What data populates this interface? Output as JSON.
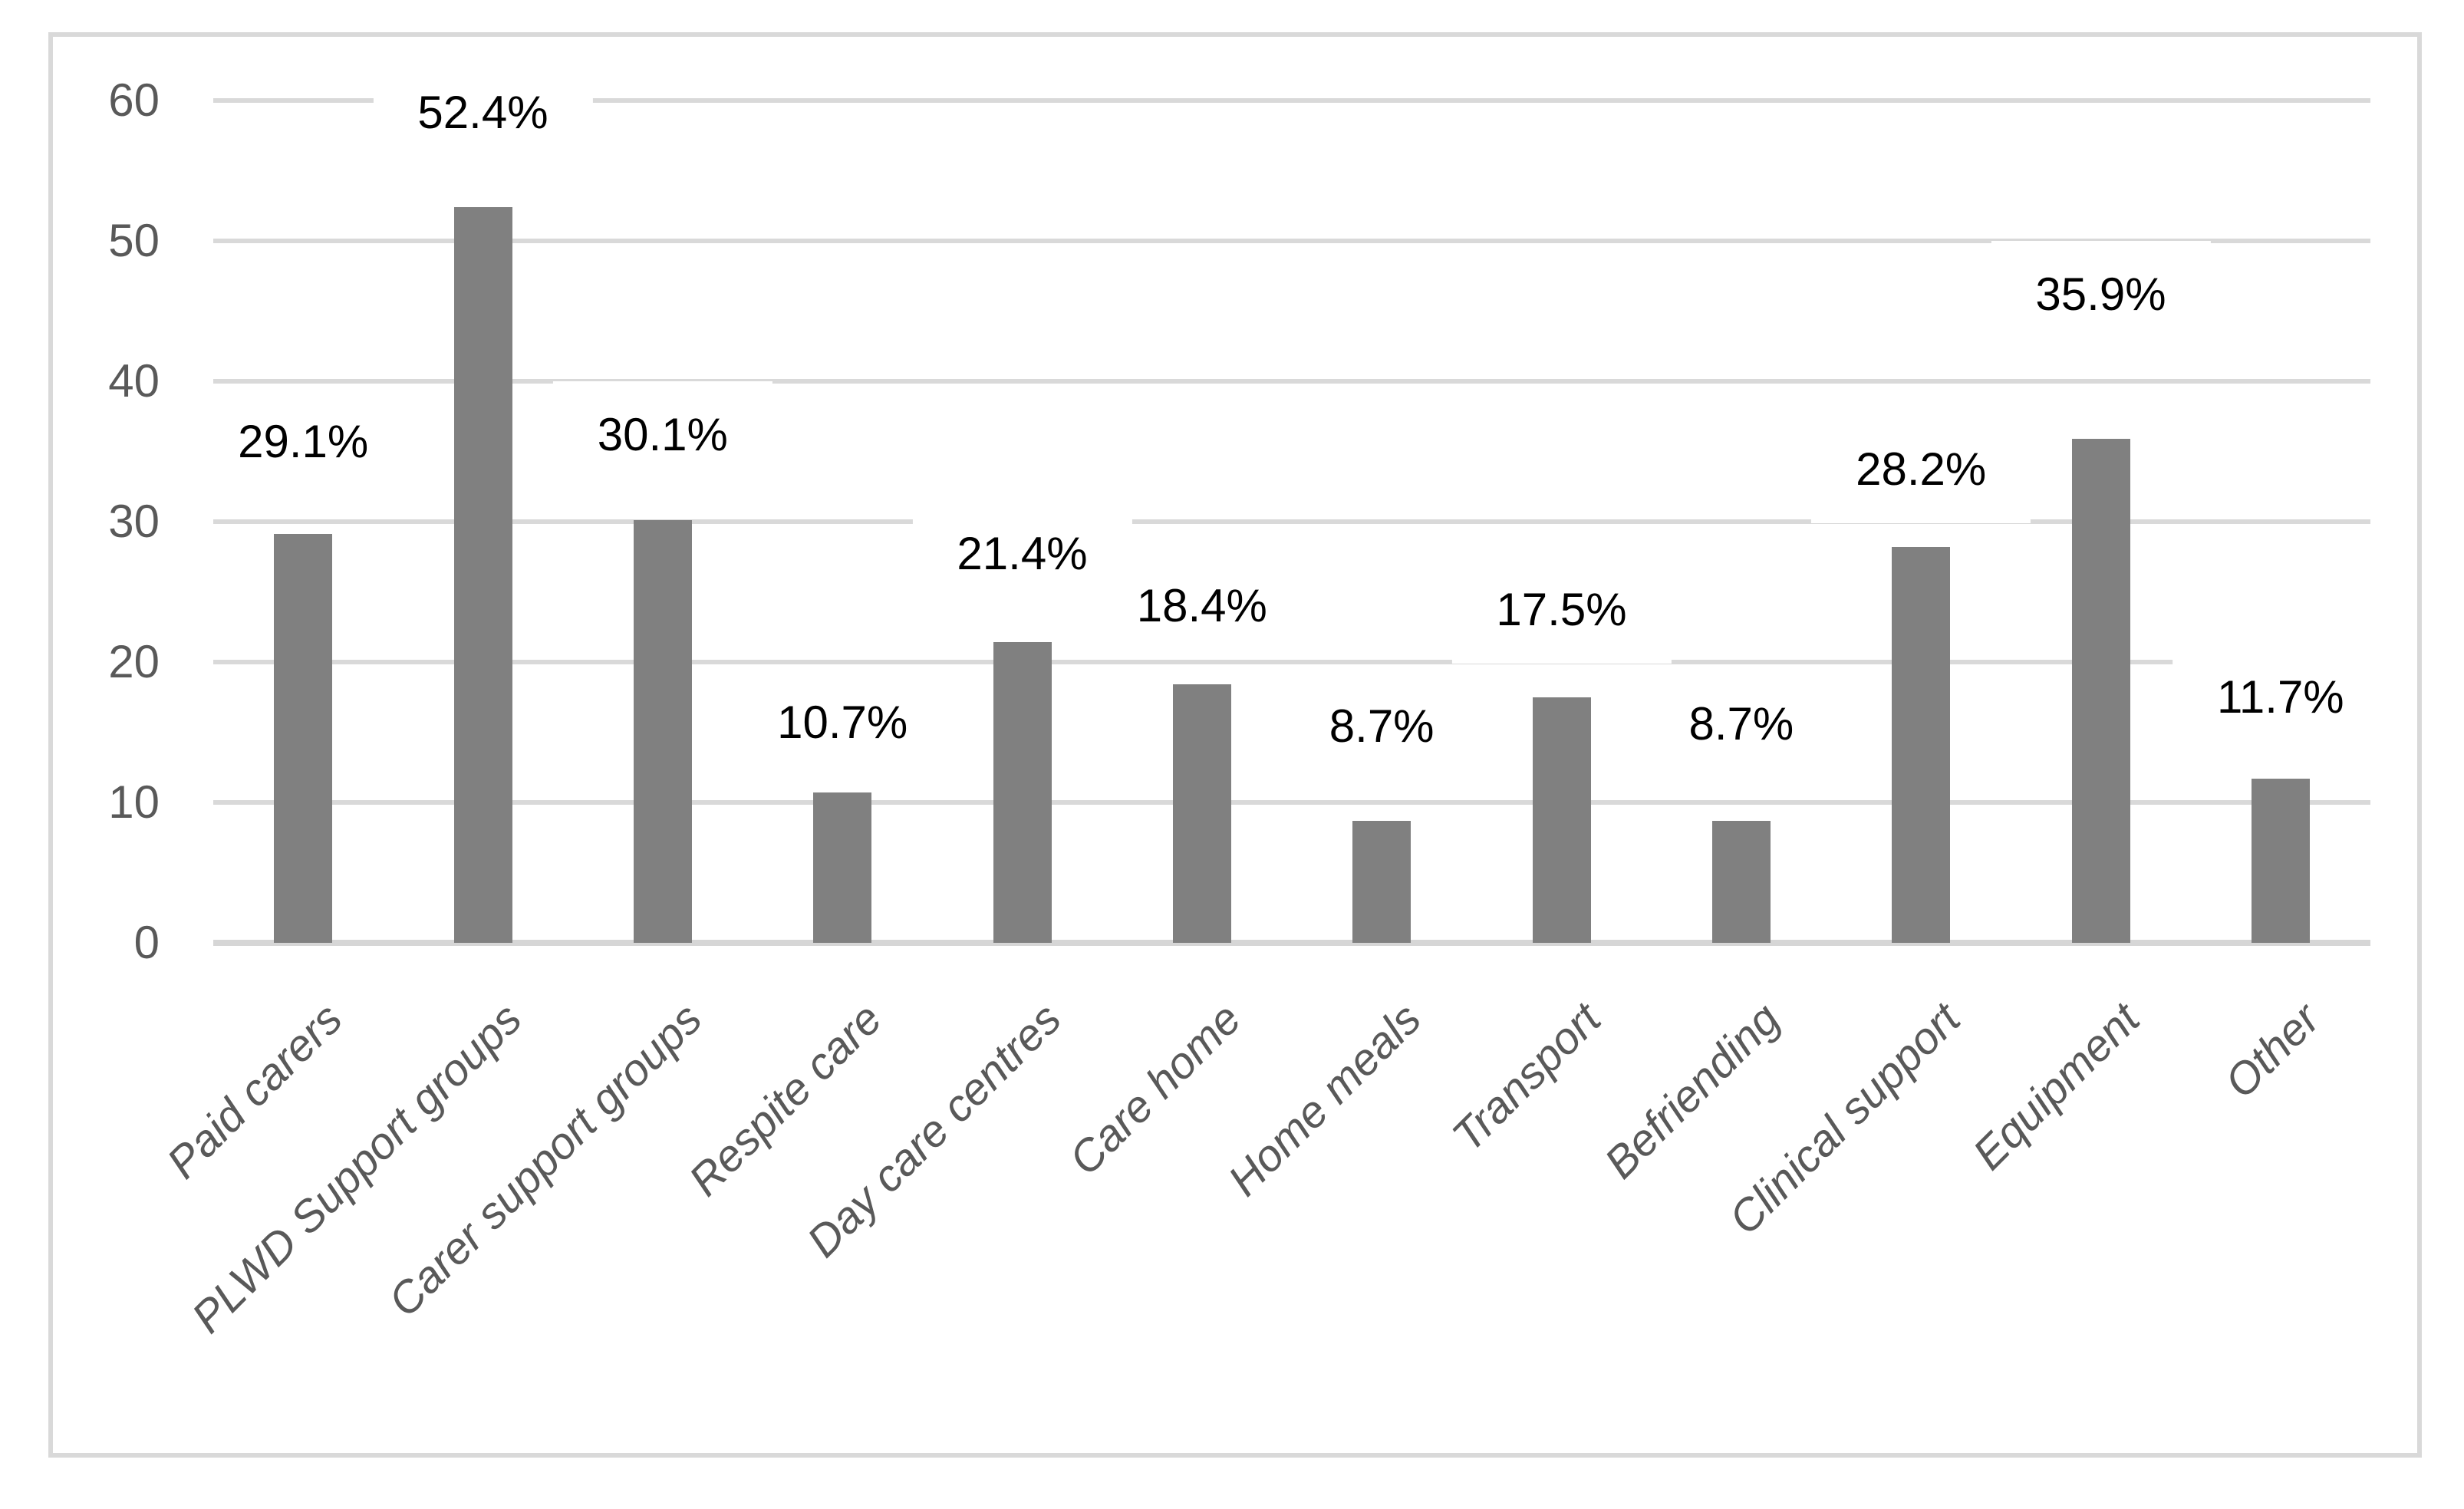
{
  "chart_data": {
    "type": "bar",
    "title": "",
    "categories": [
      "Paid carers",
      "PLWD Support groups",
      "Carer support groups",
      "Respite care",
      "Day care centres",
      "Care home",
      "Home meals",
      "Transport",
      "Befriending",
      "Clinical support",
      "Equipment",
      "Other"
    ],
    "values": [
      29.1,
      52.4,
      30.1,
      10.7,
      21.4,
      18.4,
      8.7,
      17.5,
      8.7,
      28.2,
      35.9,
      11.7
    ],
    "data_labels": [
      {
        "text": "29.1%",
        "center_value": 35.7
      },
      {
        "text": "52.4%",
        "center_value": 59.1
      },
      {
        "text": "30.1%",
        "center_value": 36.2
      },
      {
        "text": "10.7%",
        "center_value": 15.7
      },
      {
        "text": "21.4%",
        "center_value": 27.7
      },
      {
        "text": "18.4%",
        "center_value": 24.0
      },
      {
        "text": "8.7%",
        "center_value": 15.4
      },
      {
        "text": "17.5%",
        "center_value": 23.7
      },
      {
        "text": "8.7%",
        "center_value": 15.6
      },
      {
        "text": "28.2%",
        "center_value": 33.7
      },
      {
        "text": "35.9%",
        "center_value": 46.2
      },
      {
        "text": "11.7%",
        "center_value": 17.5
      }
    ],
    "xlabel": "",
    "ylabel": "",
    "ylim": [
      0,
      60
    ],
    "yticks": [
      0,
      10,
      20,
      30,
      40,
      50,
      60
    ],
    "grid": true,
    "legend": "none",
    "colors": {
      "bar": "#808080",
      "gridline": "#d9d9d9",
      "axis_line": "#d6d6d6",
      "data_label": "#000000",
      "tick_label": "#595959",
      "category_label": "#595959",
      "frame_border": "#d9d9d9",
      "background": "#ffffff"
    }
  }
}
